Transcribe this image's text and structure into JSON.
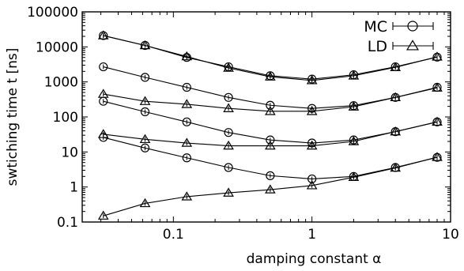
{
  "chart_data": {
    "type": "line",
    "xlabel": "damping constant α",
    "ylabel": "swtiching time t [ns]",
    "xscale": "log",
    "yscale": "log",
    "xlim": [
      0.022,
      10
    ],
    "ylim": [
      0.1,
      100000
    ],
    "grid": false,
    "legend_position": "top-right",
    "x_ticks": [
      {
        "value": 0.1,
        "label": "0.1"
      },
      {
        "value": 1,
        "label": "1"
      },
      {
        "value": 10,
        "label": "10"
      }
    ],
    "y_ticks": [
      {
        "value": 0.1,
        "label": "0.1"
      },
      {
        "value": 1,
        "label": "1"
      },
      {
        "value": 10,
        "label": "10"
      },
      {
        "value": 100,
        "label": "100"
      },
      {
        "value": 1000,
        "label": "1000"
      },
      {
        "value": 10000,
        "label": "10000"
      },
      {
        "value": 100000,
        "label": "100000"
      }
    ],
    "x": [
      0.03125,
      0.0625,
      0.125,
      0.25,
      0.5,
      1,
      2,
      4,
      8
    ],
    "series": [
      {
        "name": "MC",
        "marker": "circle",
        "values": [
          21000,
          11000,
          5000,
          2700,
          1500,
          1200,
          1600,
          2700,
          5100
        ]
      },
      {
        "name": "LD",
        "marker": "triangle",
        "values": [
          21000,
          11000,
          5300,
          2500,
          1400,
          1100,
          1500,
          2600,
          5200
        ]
      },
      {
        "name": "MC",
        "marker": "circle",
        "values": [
          2700,
          1350,
          700,
          360,
          215,
          175,
          210,
          360,
          700
        ]
      },
      {
        "name": "LD",
        "marker": "triangle",
        "values": [
          450,
          280,
          230,
          175,
          145,
          145,
          195,
          360,
          680
        ]
      },
      {
        "name": "MC",
        "marker": "circle",
        "values": [
          280,
          140,
          72,
          36,
          22,
          18,
          22,
          38,
          72
        ]
      },
      {
        "name": "LD",
        "marker": "triangle",
        "values": [
          32,
          23,
          18,
          15,
          15,
          15,
          20,
          38,
          72
        ]
      },
      {
        "name": "MC",
        "marker": "circle",
        "values": [
          26,
          13,
          6.8,
          3.6,
          2.1,
          1.7,
          2.0,
          3.6,
          7.0
        ]
      },
      {
        "name": "LD",
        "marker": "triangle",
        "values": [
          0.15,
          0.34,
          0.53,
          0.68,
          0.84,
          1.1,
          1.9,
          3.5,
          7.1
        ]
      }
    ],
    "legend": [
      {
        "label": "MC",
        "marker": "circle"
      },
      {
        "label": "LD",
        "marker": "triangle"
      }
    ]
  }
}
